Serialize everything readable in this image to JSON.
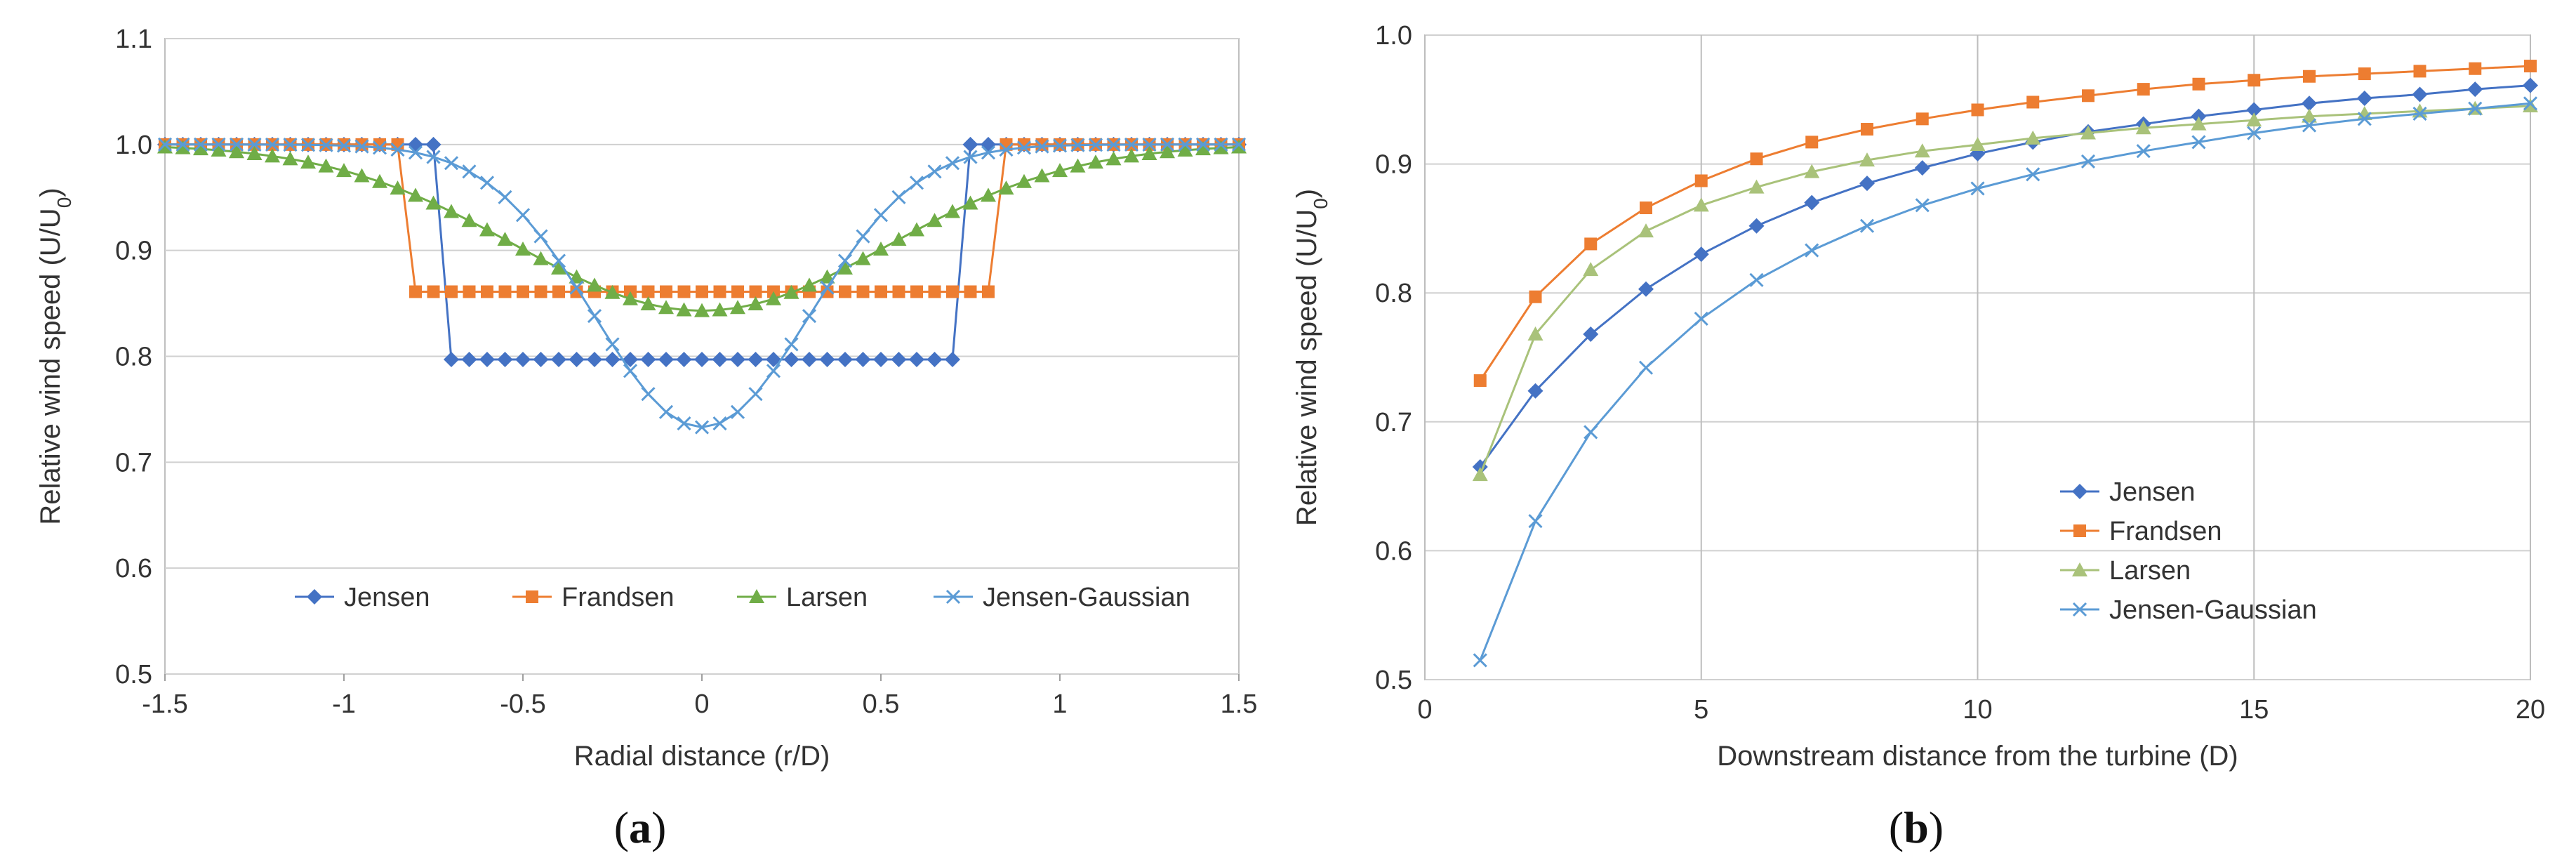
{
  "chart_data": [
    {
      "type": "line",
      "panel_label_prefix": "(",
      "panel_label_letter": "a",
      "panel_label_suffix": ")",
      "xlabel": "Radial distance (r/D)",
      "ylabel": "Relative wind speed (U/U0)",
      "xlim": [
        -1.5,
        1.5
      ],
      "ylim": [
        0.5,
        1.1
      ],
      "xticks": [
        -1.5,
        -1,
        -0.5,
        0,
        0.5,
        1,
        1.5
      ],
      "xtick_labels": [
        "-1.5",
        "-1",
        "-0.5",
        "0",
        "0.5",
        "1",
        "1.5"
      ],
      "yticks": [
        0.5,
        0.6,
        0.7,
        0.8,
        0.9,
        1.0,
        1.1
      ],
      "ytick_labels": [
        "0.5",
        "0.6",
        "0.7",
        "0.8",
        "0.9",
        "1.0",
        "1.1"
      ],
      "grid": "horizontal",
      "legend_position": "bottom-center",
      "series": [
        {
          "name": "Jensen",
          "color": "#4472C4",
          "marker": "diamond",
          "params": {
            "model": "tophat",
            "radius": 0.72,
            "inside": 0.797,
            "outside": 1.0,
            "step": 0.05
          }
        },
        {
          "name": "Frandsen",
          "color": "#ED7D31",
          "marker": "square",
          "params": {
            "model": "tophat",
            "radius": 0.82,
            "inside": 0.861,
            "outside": 1.0,
            "step": 0.05
          }
        },
        {
          "name": "Larsen",
          "color": "#70AD47",
          "marker": "triangle",
          "params": {
            "model": "gauss",
            "min": 0.843,
            "sigma": 0.52,
            "step": 0.05
          }
        },
        {
          "name": "Jensen-Gaussian",
          "color": "#5B9BD5",
          "marker": "x",
          "params": {
            "model": "gauss",
            "min": 0.733,
            "sigma": 0.3,
            "step": 0.05
          }
        }
      ]
    },
    {
      "type": "line",
      "panel_label_prefix": "(",
      "panel_label_letter": "b",
      "panel_label_suffix": ")",
      "xlabel": "Downstream distance from the turbine (D)",
      "ylabel": "Relative wind speed (U/U0)",
      "xlim": [
        0,
        20
      ],
      "ylim": [
        0.5,
        1.0
      ],
      "xticks": [
        0,
        5,
        10,
        15,
        20
      ],
      "xtick_labels": [
        "0",
        "5",
        "10",
        "15",
        "20"
      ],
      "yticks": [
        0.5,
        0.6,
        0.7,
        0.8,
        0.9,
        1.0
      ],
      "ytick_labels": [
        "0.5",
        "0.6",
        "0.7",
        "0.8",
        "0.9",
        "1.0"
      ],
      "grid": "both",
      "legend_position": "center-right",
      "x": [
        1,
        2,
        3,
        4,
        5,
        6,
        7,
        8,
        9,
        10,
        11,
        12,
        13,
        14,
        15,
        16,
        17,
        18,
        19,
        20
      ],
      "series": [
        {
          "name": "Jensen",
          "color": "#4472C4",
          "marker": "diamond",
          "values": [
            0.665,
            0.724,
            0.768,
            0.803,
            0.83,
            0.852,
            0.87,
            0.885,
            0.897,
            0.908,
            0.917,
            0.925,
            0.931,
            0.937,
            0.942,
            0.947,
            0.951,
            0.954,
            0.958,
            0.961
          ]
        },
        {
          "name": "Frandsen",
          "color": "#ED7D31",
          "marker": "square",
          "values": [
            0.732,
            0.797,
            0.838,
            0.866,
            0.887,
            0.904,
            0.917,
            0.927,
            0.935,
            0.942,
            0.948,
            0.953,
            0.958,
            0.962,
            0.965,
            0.968,
            0.97,
            0.972,
            0.974,
            0.976
          ]
        },
        {
          "name": "Larsen",
          "color": "#A9C27A",
          "marker": "triangle",
          "values": [
            0.659,
            0.768,
            0.818,
            0.848,
            0.868,
            0.882,
            0.894,
            0.903,
            0.91,
            0.915,
            0.92,
            0.924,
            0.928,
            0.931,
            0.934,
            0.937,
            0.939,
            0.941,
            0.943,
            0.945
          ]
        },
        {
          "name": "Jensen-Gaussian",
          "color": "#5B9BD5",
          "marker": "x",
          "values": [
            0.515,
            0.623,
            0.692,
            0.742,
            0.78,
            0.81,
            0.833,
            0.852,
            0.868,
            0.881,
            0.892,
            0.902,
            0.91,
            0.917,
            0.924,
            0.93,
            0.935,
            0.939,
            0.943,
            0.947
          ]
        }
      ]
    }
  ]
}
